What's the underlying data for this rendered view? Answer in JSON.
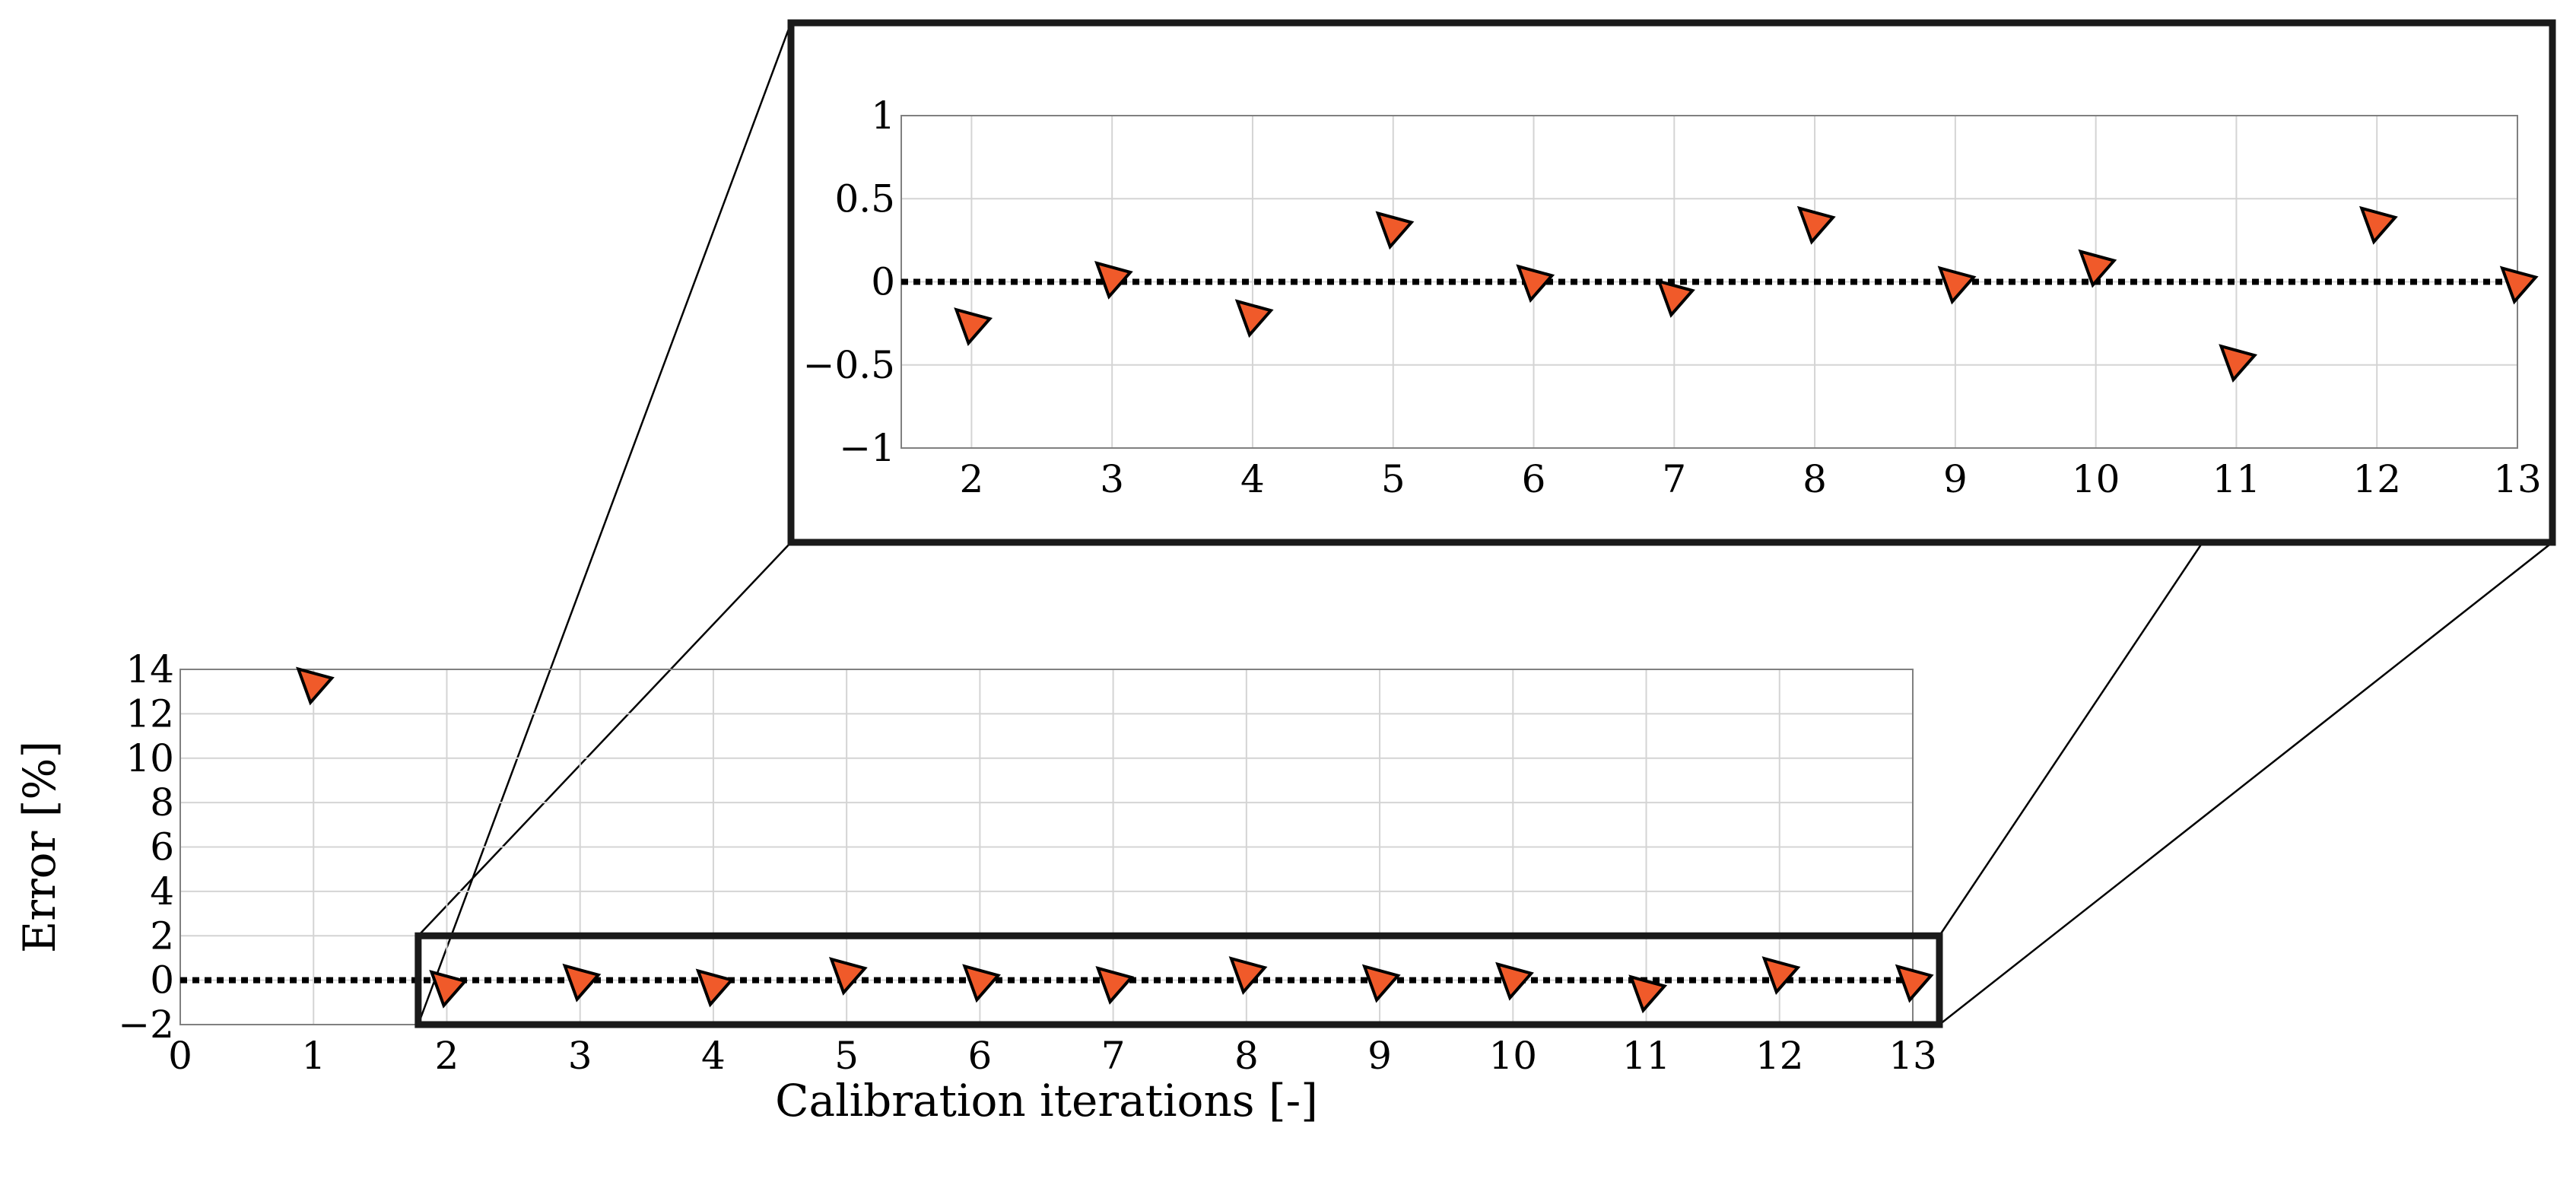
{
  "chart_data": [
    {
      "type": "scatter",
      "name": "main-plot",
      "title": "",
      "xlabel": "Calibration iterations [-]",
      "ylabel": "Error [%]",
      "xlim": [
        0,
        13
      ],
      "ylim": [
        -2,
        14
      ],
      "xticks": [
        0,
        1,
        2,
        3,
        4,
        5,
        6,
        7,
        8,
        9,
        10,
        11,
        12,
        13
      ],
      "yticks": [
        -2,
        0,
        2,
        4,
        6,
        8,
        10,
        12,
        14
      ],
      "ytick_labels": [
        "−2",
        "0",
        "2",
        "4",
        "6",
        "8",
        "10",
        "12",
        "14"
      ],
      "grid": true,
      "reference_line": 0,
      "marker_color": "#f05a2a",
      "series": [
        {
          "x": [
            1,
            2,
            3,
            4,
            5,
            6,
            7,
            8,
            9,
            10,
            11,
            12,
            13
          ],
          "y": [
            13.4,
            -0.25,
            0.03,
            -0.2,
            0.33,
            0.01,
            -0.08,
            0.36,
            0.0,
            0.1,
            -0.47,
            0.36,
            0.0
          ]
        }
      ]
    },
    {
      "type": "scatter",
      "name": "zoom-inset",
      "title": "",
      "xlabel": "",
      "ylabel": "",
      "xlim": [
        1.5,
        13
      ],
      "ylim": [
        -1,
        1
      ],
      "xticks": [
        2,
        3,
        4,
        5,
        6,
        7,
        8,
        9,
        10,
        11,
        12,
        13
      ],
      "yticks": [
        -1,
        -0.5,
        0,
        0.5,
        1
      ],
      "ytick_labels": [
        "−1",
        "−0.5",
        "0",
        "0.5",
        "1"
      ],
      "grid": true,
      "reference_line": 0,
      "marker_color": "#f05a2a",
      "series": [
        {
          "x": [
            2,
            3,
            4,
            5,
            6,
            7,
            8,
            9,
            10,
            11,
            12,
            13
          ],
          "y": [
            -0.25,
            0.03,
            -0.2,
            0.33,
            0.01,
            -0.08,
            0.36,
            0.0,
            0.1,
            -0.47,
            0.36,
            0.0
          ]
        }
      ]
    }
  ]
}
